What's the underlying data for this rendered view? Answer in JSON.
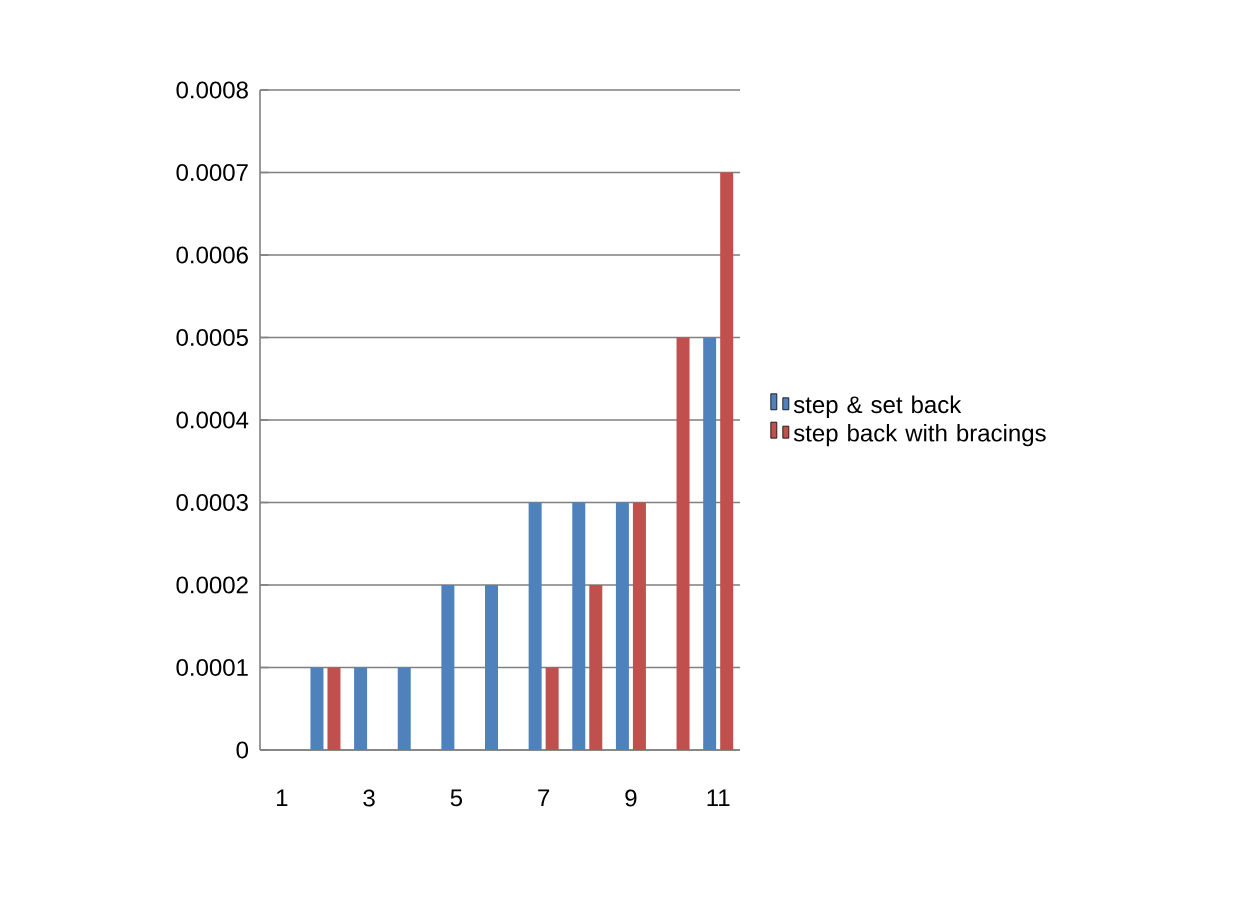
{
  "chart_data": {
    "type": "bar",
    "categories": [
      "1",
      null,
      "3",
      null,
      "5",
      null,
      "7",
      null,
      "9",
      null,
      "11"
    ],
    "series": [
      {
        "name": "step & set back",
        "color": "#4f81bd",
        "values": [
          0,
          0.0001,
          0.0001,
          0.0001,
          0.0002,
          0.0002,
          0.0003,
          0.0003,
          0.0003,
          0,
          0.0005
        ]
      },
      {
        "name": "step back with bracings",
        "color": "#c0504d",
        "values": [
          0,
          0.0001,
          0,
          0,
          0,
          0,
          0.0001,
          0.0002,
          0.0003,
          0.0005,
          0.0007
        ]
      }
    ],
    "ylim": [
      0,
      0.0008
    ],
    "yticks": [
      0,
      0.0001,
      0.0002,
      0.0003,
      0.0004,
      0.0005,
      0.0006,
      0.0007,
      0.0008
    ],
    "grid": "y",
    "legend": "right"
  }
}
